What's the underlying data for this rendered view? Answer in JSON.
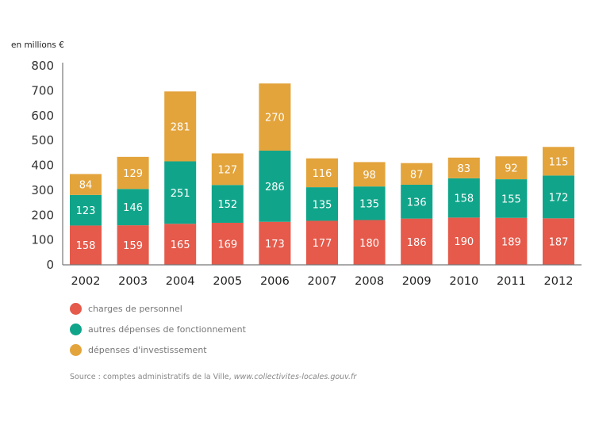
{
  "chart_data": {
    "type": "bar",
    "stacked": true,
    "title": "",
    "unit_label": "en millions €",
    "xlabel": "",
    "ylabel": "en millions €",
    "ylim": [
      0,
      800
    ],
    "yticks": [
      0,
      100,
      200,
      300,
      400,
      500,
      600,
      700,
      800
    ],
    "grid": false,
    "categories": [
      "2002",
      "2003",
      "2004",
      "2005",
      "2006",
      "2007",
      "2008",
      "2009",
      "2010",
      "2011",
      "2012"
    ],
    "series": [
      {
        "name": "charges de personnel",
        "color": "#e55a4b",
        "values": [
          158,
          159,
          165,
          169,
          173,
          177,
          180,
          186,
          190,
          189,
          187
        ]
      },
      {
        "name": "autres dépenses de fonctionnement",
        "color": "#10a58a",
        "values": [
          123,
          146,
          251,
          152,
          286,
          135,
          135,
          136,
          158,
          155,
          172
        ]
      },
      {
        "name": "dépenses d'investissement",
        "color": "#e3a43c",
        "values": [
          84,
          129,
          281,
          127,
          270,
          116,
          98,
          87,
          83,
          92,
          115
        ]
      }
    ],
    "legend_position": "bottom-left",
    "data_labels": true
  },
  "source": {
    "prefix": "Source : comptes administratifs de la Ville, ",
    "link": "www.collectivites-locales.gouv.fr"
  }
}
